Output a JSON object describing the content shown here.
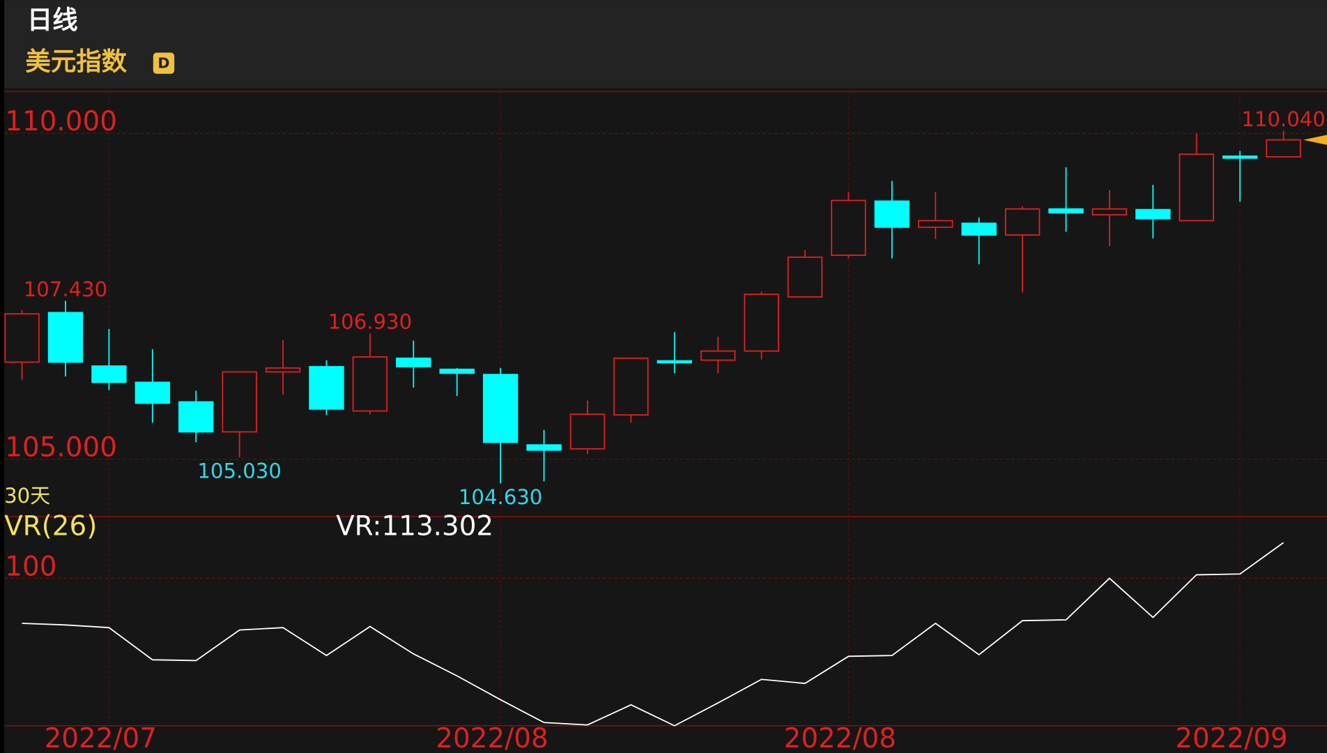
{
  "header": {
    "period": "日线",
    "name": "美元指数",
    "badge": "D"
  },
  "chart_data": [
    {
      "type": "candlestick",
      "categories": [
        null,
        null,
        "2022/07",
        null,
        null,
        null,
        null,
        null,
        null,
        null,
        null,
        "2022/08",
        null,
        null,
        null,
        null,
        null,
        null,
        null,
        "2022/08",
        null,
        null,
        null,
        null,
        null,
        null,
        null,
        null,
        "2022/09",
        null
      ],
      "open": [
        106.49,
        107.25,
        106.43,
        106.18,
        105.88,
        105.42,
        106.34,
        106.42,
        105.74,
        106.55,
        106.38,
        106.3,
        105.22,
        105.16,
        105.68,
        106.51,
        106.52,
        106.66,
        107.49,
        108.13,
        108.96,
        108.56,
        108.62,
        108.44,
        108.84,
        108.75,
        108.83,
        108.66,
        109.65,
        109.64
      ],
      "high": [
        107.29,
        107.43,
        107.0,
        106.69,
        106.05,
        106.35,
        106.83,
        106.52,
        106.93,
        106.82,
        106.4,
        106.4,
        105.45,
        105.9,
        106.56,
        106.95,
        106.88,
        107.57,
        108.21,
        109.1,
        109.27,
        109.1,
        108.71,
        108.88,
        109.48,
        109.13,
        109.21,
        110.0,
        109.73,
        110.04
      ],
      "low": [
        106.22,
        106.27,
        106.06,
        105.56,
        105.26,
        105.03,
        105.99,
        105.68,
        105.69,
        106.1,
        105.97,
        104.63,
        104.66,
        105.08,
        105.56,
        106.32,
        106.32,
        106.53,
        107.49,
        108.08,
        108.08,
        108.38,
        107.99,
        107.56,
        108.49,
        108.27,
        108.39,
        108.66,
        108.95,
        109.64
      ],
      "close": [
        107.23,
        106.49,
        106.18,
        105.86,
        105.42,
        106.34,
        106.4,
        105.77,
        106.57,
        106.42,
        106.32,
        105.26,
        105.14,
        105.69,
        106.55,
        106.48,
        106.66,
        107.53,
        108.1,
        108.97,
        108.56,
        108.66,
        108.44,
        108.84,
        108.78,
        108.84,
        108.69,
        109.68,
        109.62,
        109.9
      ],
      "high_labels": [
        null,
        "107.430",
        null,
        null,
        null,
        null,
        null,
        null,
        "106.930",
        null,
        null,
        null,
        null,
        null,
        null,
        null,
        null,
        null,
        null,
        null,
        null,
        null,
        null,
        null,
        null,
        null,
        null,
        null,
        null,
        "110.040"
      ],
      "low_labels": [
        null,
        null,
        null,
        null,
        null,
        "105.030",
        null,
        null,
        null,
        null,
        null,
        "104.630",
        null,
        null,
        null,
        null,
        null,
        null,
        null,
        null,
        null,
        null,
        null,
        null,
        null,
        null,
        null,
        null,
        null,
        null
      ],
      "up_color": "#e02020",
      "down_color": "#00ffff",
      "ylim": [
        104.12,
        110.64
      ],
      "yticks": [
        {
          "value": 110,
          "label": "110.000"
        },
        {
          "value": 105,
          "label": "105.000"
        }
      ]
    },
    {
      "type": "line",
      "period_label": "30天",
      "value_label": "VR:113.302",
      "series": [
        {
          "name": "VR(26)",
          "color": "#ffffff",
          "values": [
            83.2,
            82.6,
            81.6,
            69.6,
            69.3,
            80.7,
            81.6,
            71.2,
            82.0,
            71.8,
            63.6,
            54.7,
            46.2,
            45.3,
            52.8,
            45.0,
            53.5,
            62.3,
            60.8,
            70.9,
            71.2,
            83.2,
            71.5,
            84.2,
            84.5,
            100.0,
            85.4,
            101.3,
            101.6,
            113.302
          ]
        }
      ],
      "ylim": [
        45,
        123
      ],
      "yticks": [
        100
      ]
    }
  ]
}
